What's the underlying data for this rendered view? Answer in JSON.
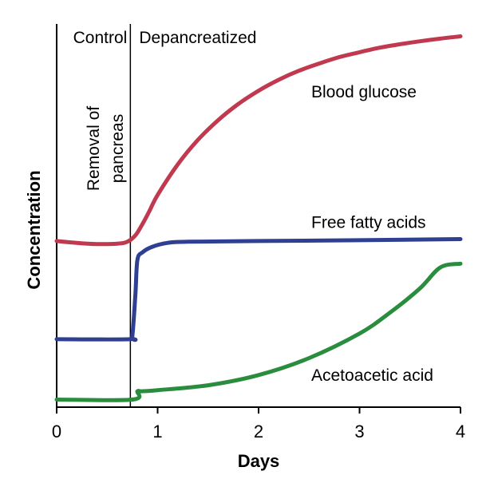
{
  "chart_data": {
    "type": "line",
    "xlabel": "Days",
    "ylabel": "Concentration",
    "xlim": [
      0,
      4
    ],
    "ylim": [
      0,
      10
    ],
    "x_ticks": [
      0,
      1,
      2,
      3,
      4
    ],
    "grid": false,
    "legend": "none",
    "event_x": 0.73,
    "annotations": {
      "control": "Control",
      "depancreatized": "Depancreatized",
      "removal_line1": "Removal of",
      "removal_line2": "pancreas"
    },
    "series": [
      {
        "name": "Blood glucose",
        "color": "#c0394f",
        "x": [
          0,
          0.2,
          0.4,
          0.6,
          0.7,
          0.78,
          0.85,
          0.92,
          1.0,
          1.2,
          1.4,
          1.6,
          1.8,
          2.0,
          2.2,
          2.4,
          2.6,
          2.8,
          3.0,
          3.2,
          3.4,
          3.6,
          3.8,
          4.0
        ],
        "values": [
          4.4,
          4.35,
          4.32,
          4.33,
          4.38,
          4.55,
          4.85,
          5.2,
          5.62,
          6.43,
          7.08,
          7.6,
          8.03,
          8.38,
          8.67,
          8.91,
          9.1,
          9.27,
          9.4,
          9.52,
          9.61,
          9.69,
          9.76,
          9.82
        ]
      },
      {
        "name": "Free fatty acids",
        "color": "#2f3f92",
        "x": [
          0,
          0.72,
          0.75,
          0.78,
          0.8,
          0.85,
          0.95,
          1.1,
          1.3,
          2.0,
          3.0,
          4.0
        ],
        "values": [
          1.8,
          1.8,
          1.9,
          3.0,
          3.9,
          4.1,
          4.25,
          4.35,
          4.38,
          4.4,
          4.42,
          4.45
        ]
      },
      {
        "name": "Acetoacetic acid",
        "color": "#2a8c3d",
        "x": [
          0,
          0.75,
          0.8,
          0.84,
          1.0,
          1.5,
          2.0,
          2.5,
          3.0,
          3.3,
          3.6,
          3.8,
          4.0
        ],
        "values": [
          0.2,
          0.2,
          0.42,
          0.42,
          0.45,
          0.58,
          0.85,
          1.3,
          1.95,
          2.5,
          3.15,
          3.7,
          3.8
        ]
      }
    ],
    "series_label_y": [
      8.2,
      4.75,
      0.7
    ]
  }
}
